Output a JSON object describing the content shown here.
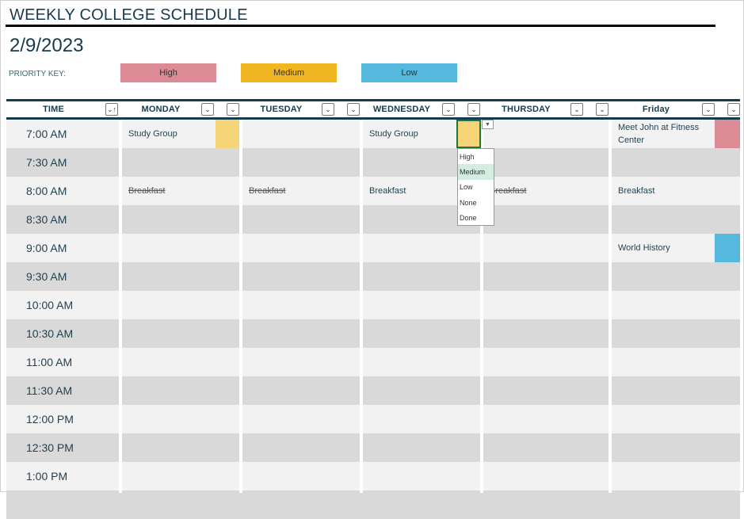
{
  "header": {
    "title": "WEEKLY COLLEGE SCHEDULE",
    "date": "2/9/2023",
    "priority_key_label": "PRIORITY KEY:"
  },
  "priority_key": [
    {
      "label": "High",
      "color": "#dc8a94"
    },
    {
      "label": "Medium",
      "color": "#f0b722"
    },
    {
      "label": "Low",
      "color": "#56b8dc"
    }
  ],
  "priority_cell_colors": {
    "High": "#dc8a94",
    "Medium": "#f5d577",
    "Low": "#56b8dc"
  },
  "columns": [
    "TIME",
    "MONDAY",
    "TUESDAY",
    "WEDNESDAY",
    "THURSDAY",
    "Friday"
  ],
  "rows": [
    {
      "time": "7:00 AM",
      "cells": [
        {
          "text": "Study Group",
          "priority": "Medium"
        },
        {},
        {
          "text": "Study Group",
          "priority": "Medium"
        },
        {},
        {
          "text": "Meet John at Fitness Center",
          "priority": "High"
        }
      ]
    },
    {
      "time": "7:30 AM",
      "cells": [
        {},
        {},
        {},
        {},
        {}
      ]
    },
    {
      "time": "8:00 AM",
      "cells": [
        {
          "text": "Breakfast",
          "done": true
        },
        {
          "text": "Breakfast",
          "done": true
        },
        {
          "text": "Breakfast"
        },
        {
          "text": "Breakfast",
          "done": true
        },
        {
          "text": "Breakfast"
        }
      ]
    },
    {
      "time": "8:30 AM",
      "cells": [
        {},
        {},
        {},
        {},
        {}
      ]
    },
    {
      "time": "9:00 AM",
      "cells": [
        {},
        {},
        {},
        {},
        {
          "text": "World History",
          "priority": "Low"
        }
      ]
    },
    {
      "time": "9:30 AM",
      "cells": [
        {},
        {},
        {},
        {},
        {}
      ]
    },
    {
      "time": "10:00 AM",
      "cells": [
        {},
        {},
        {},
        {},
        {}
      ]
    },
    {
      "time": "10:30 AM",
      "cells": [
        {},
        {},
        {},
        {},
        {}
      ]
    },
    {
      "time": "11:00 AM",
      "cells": [
        {},
        {},
        {},
        {},
        {}
      ]
    },
    {
      "time": "11:30 AM",
      "cells": [
        {},
        {},
        {},
        {},
        {}
      ]
    },
    {
      "time": "12:00 PM",
      "cells": [
        {},
        {},
        {},
        {},
        {}
      ]
    },
    {
      "time": "12:30 PM",
      "cells": [
        {},
        {},
        {},
        {},
        {}
      ]
    },
    {
      "time": "1:00 PM",
      "cells": [
        {},
        {},
        {},
        {},
        {}
      ]
    },
    {
      "time": "",
      "cells": [
        {},
        {},
        {},
        {},
        {}
      ]
    }
  ],
  "priority_dropdown": {
    "options": [
      "High",
      "Medium",
      "Low",
      "None",
      "Done"
    ],
    "highlighted": "Medium"
  }
}
